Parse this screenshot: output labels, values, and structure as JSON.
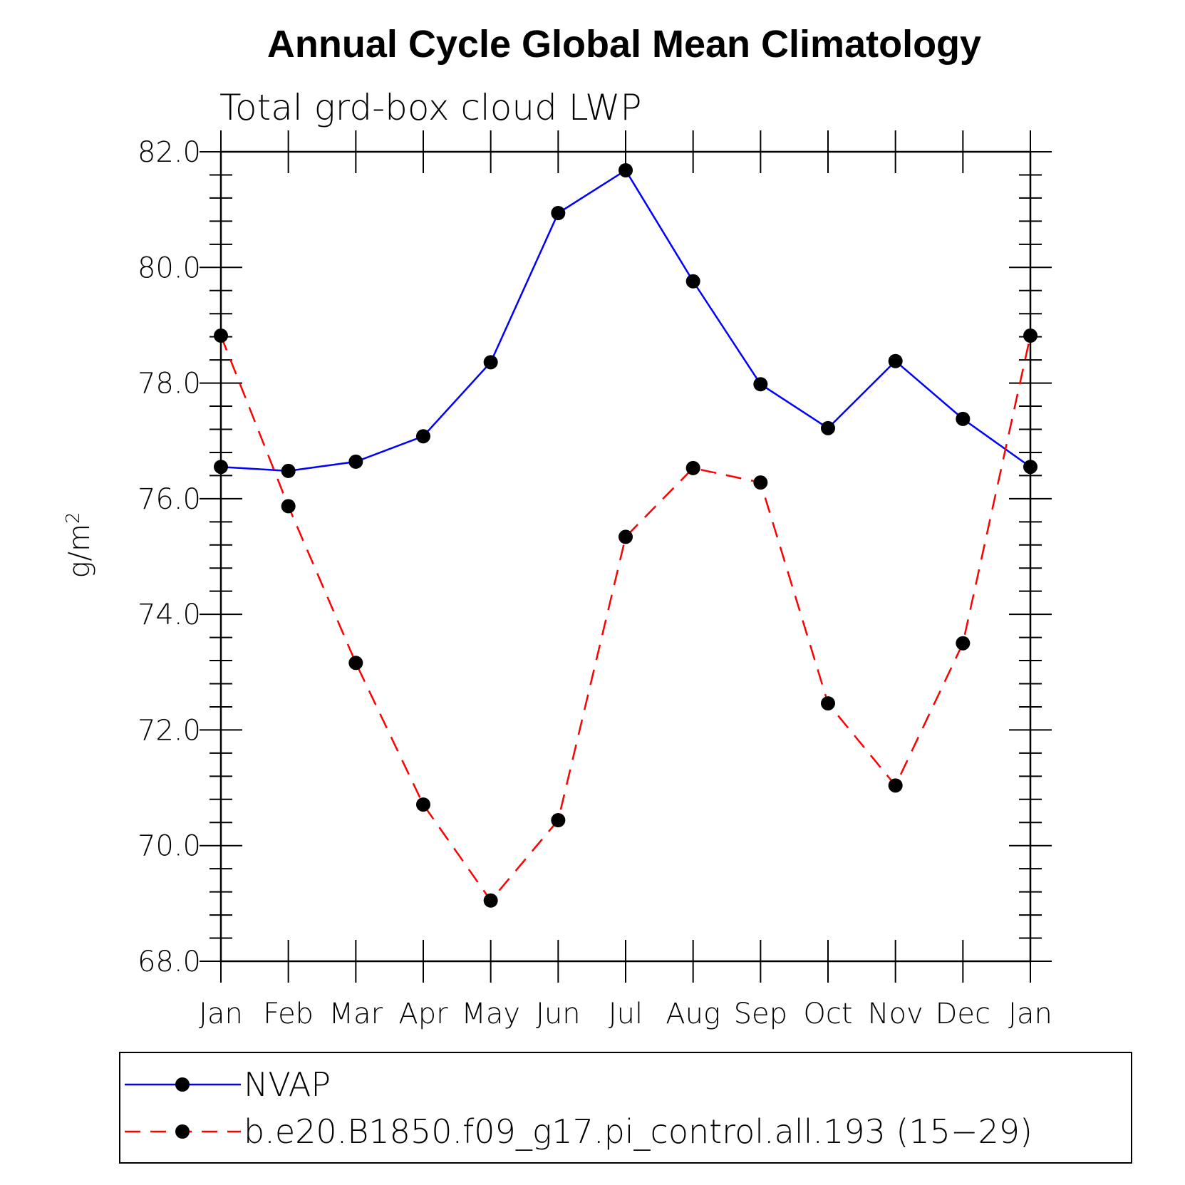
{
  "chart_data": {
    "type": "line",
    "title": "Annual Cycle Global Mean Climatology",
    "subtitle": "Total grd-box cloud LWP",
    "ylabel": "g/m",
    "ylabel_superscript": "2",
    "xlabel": "",
    "categories": [
      "Jan",
      "Feb",
      "Mar",
      "Apr",
      "May",
      "Jun",
      "Jul",
      "Aug",
      "Sep",
      "Oct",
      "Nov",
      "Dec",
      "Jan"
    ],
    "ylim": [
      68.0,
      82.0
    ],
    "yticks": [
      "68.0",
      "70.0",
      "72.0",
      "74.0",
      "76.0",
      "78.0",
      "80.0",
      "82.0"
    ],
    "series": [
      {
        "name": "NVAP",
        "color": "#0000ff",
        "dash": "solid",
        "values": [
          76.55,
          76.48,
          76.64,
          77.08,
          78.36,
          80.94,
          81.68,
          79.76,
          77.98,
          77.22,
          78.38,
          77.38,
          76.55
        ]
      },
      {
        "name": "b.e20.B1850.f09_g17.pi_control.all.193 (15−29)",
        "color": "#ff0000",
        "dash": "dashed",
        "values": [
          78.82,
          75.87,
          73.16,
          70.71,
          69.05,
          70.44,
          75.34,
          76.53,
          76.28,
          72.46,
          71.04,
          73.5,
          78.82
        ]
      }
    ],
    "marker": "filled-circle",
    "marker_color": "#000000",
    "grid": false,
    "legend_position": "bottom"
  }
}
